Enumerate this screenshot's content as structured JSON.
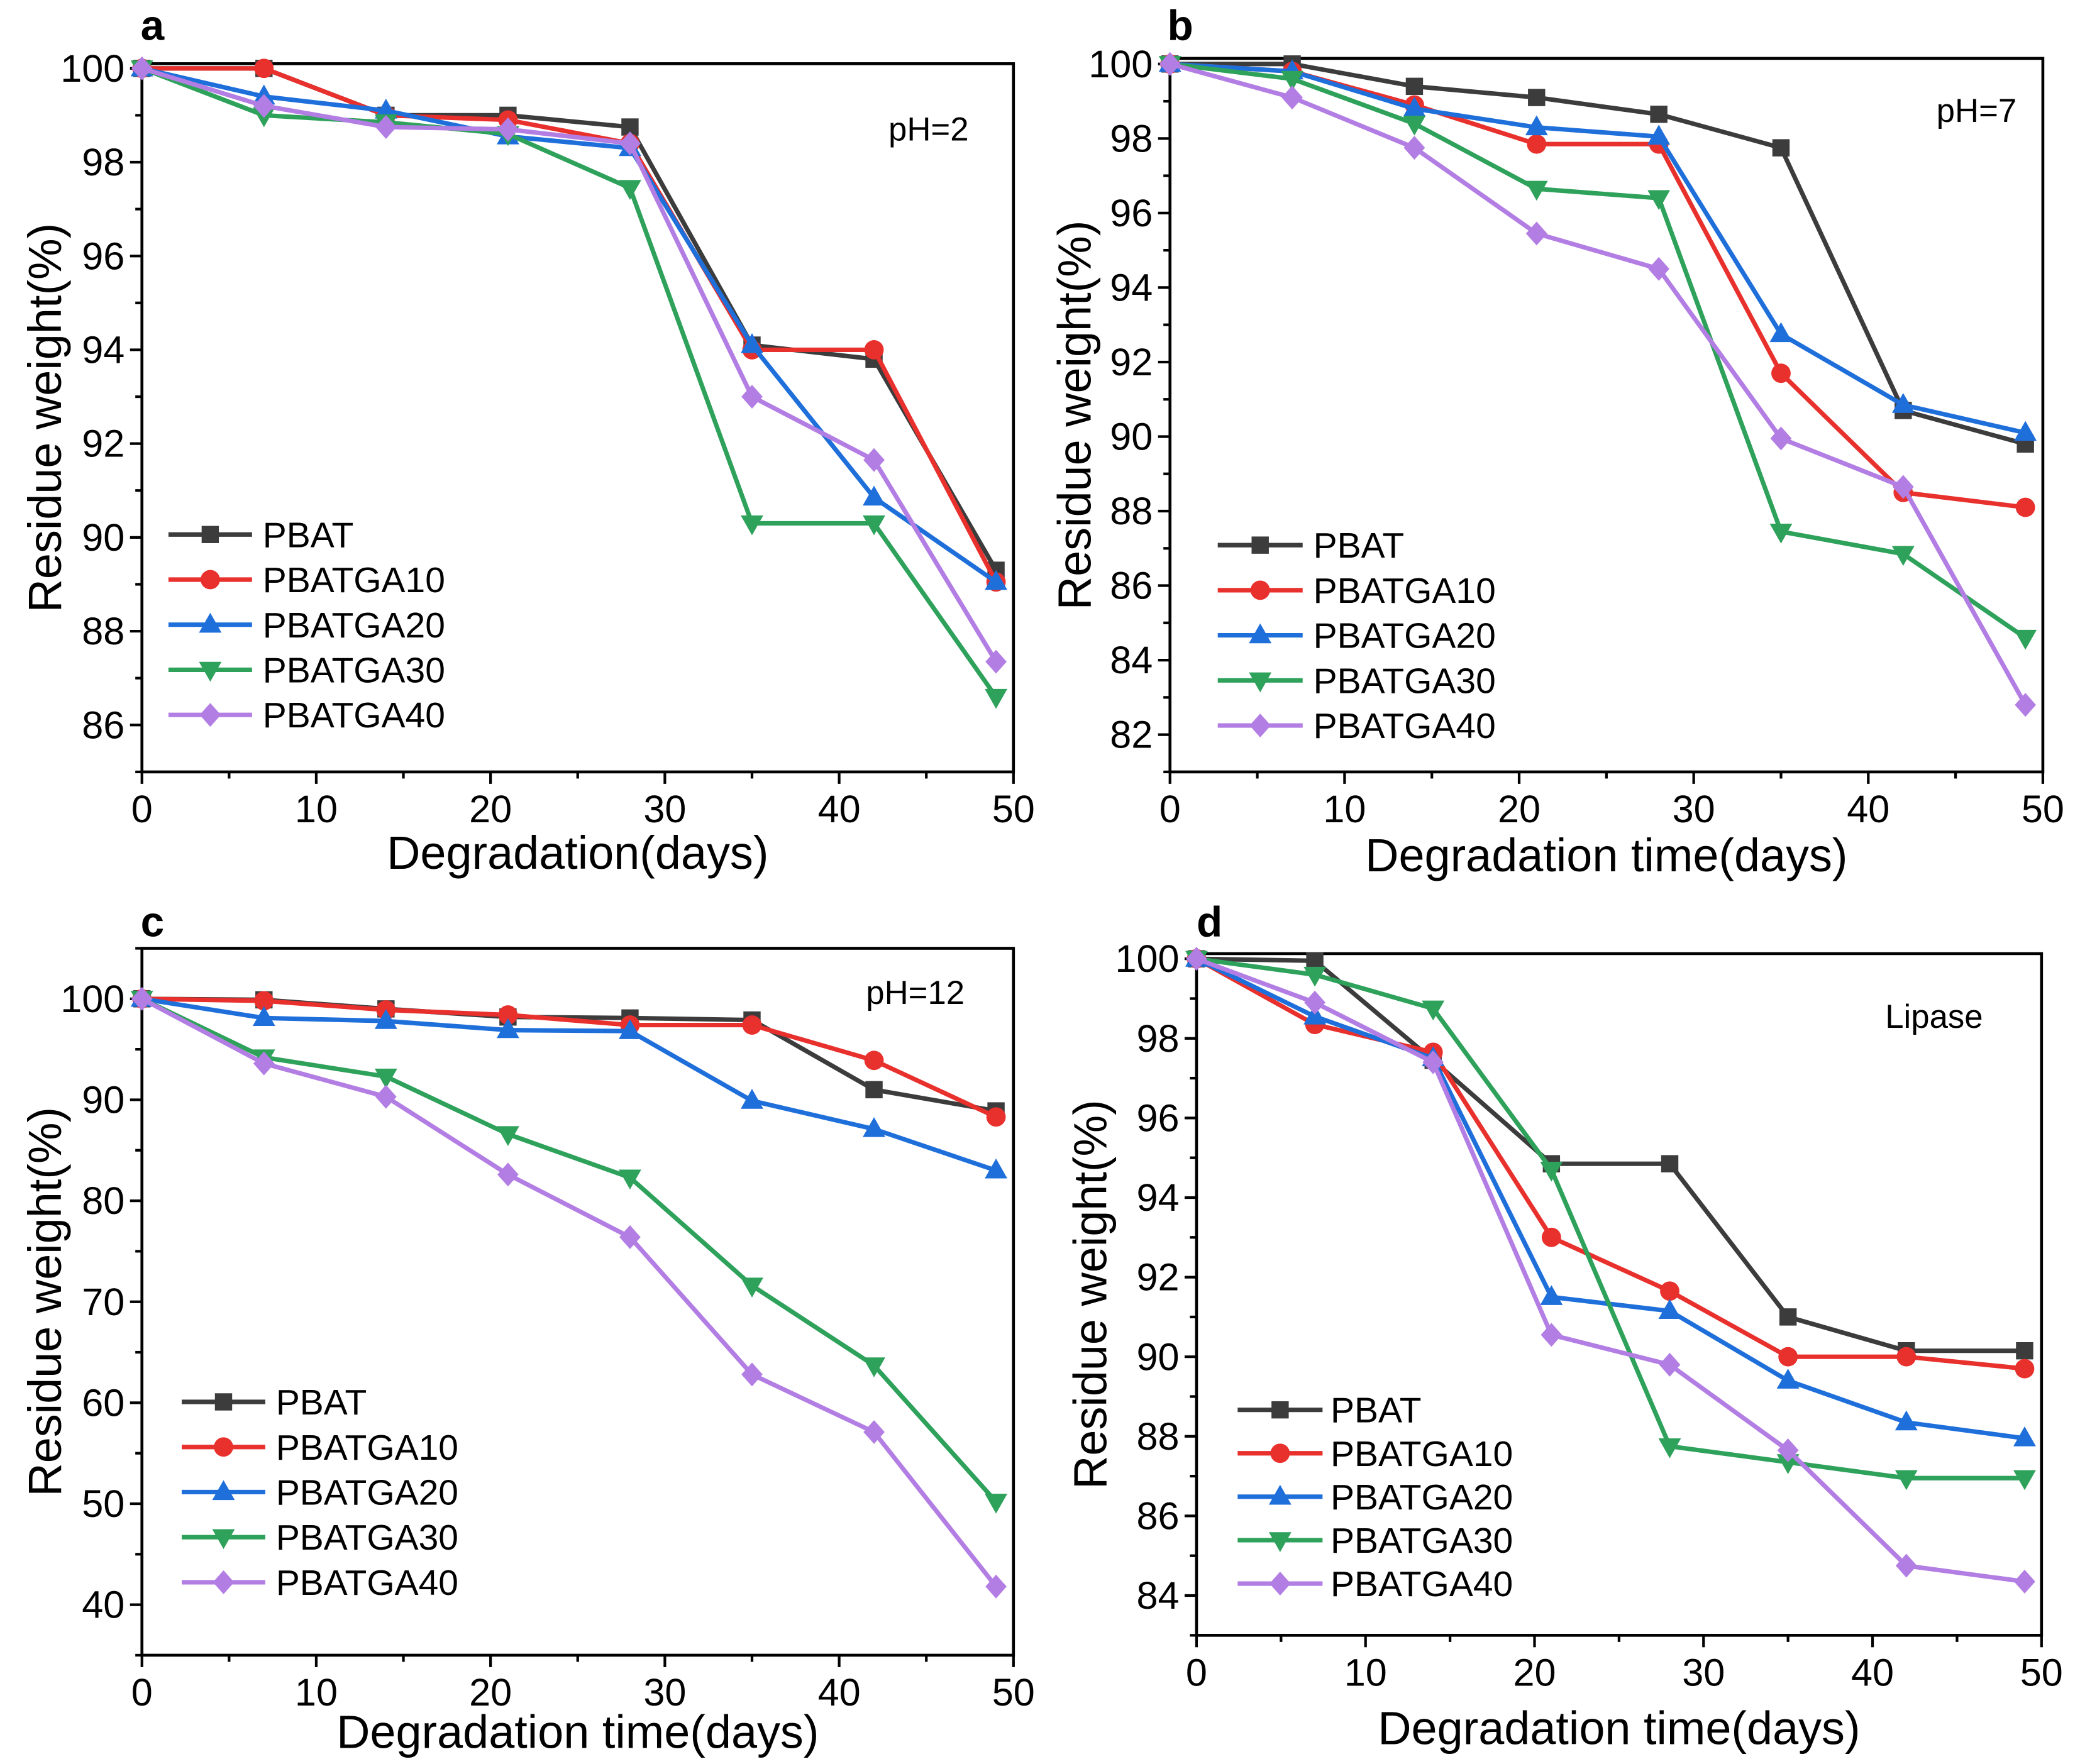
{
  "chart_data": [
    {
      "type": "line",
      "panel_label": "a",
      "annotation": "pH=2",
      "xlabel": "Degradation(days)",
      "ylabel": "Residue weight(%)",
      "xlim": [
        0,
        50
      ],
      "ylim": [
        85,
        100.1
      ],
      "xticks": [
        0,
        10,
        20,
        30,
        40,
        50
      ],
      "yticks": [
        86,
        88,
        90,
        92,
        94,
        96,
        98,
        100
      ],
      "x_minor_step": 5,
      "y_minor_step": 1,
      "grid": false,
      "legend_position": "lower-left",
      "x": [
        0,
        7,
        14,
        21,
        28,
        35,
        42,
        49
      ],
      "series": [
        {
          "name": "PBAT",
          "color": "#3c3c3c",
          "marker": "square",
          "values": [
            100,
            100,
            99.0,
            99.0,
            98.75,
            94.1,
            93.8,
            89.3
          ]
        },
        {
          "name": "PBATGA10",
          "color": "#e8302d",
          "marker": "circle",
          "values": [
            100,
            100,
            99.0,
            98.9,
            98.4,
            94.0,
            94.0,
            89.05
          ]
        },
        {
          "name": "PBATGA20",
          "color": "#1f6fdb",
          "marker": "triangle-up",
          "values": [
            100,
            99.4,
            99.1,
            98.55,
            98.3,
            94.1,
            90.85,
            89.05
          ]
        },
        {
          "name": "PBATGA30",
          "color": "#2ea15b",
          "marker": "triangle-down",
          "values": [
            100,
            99.0,
            98.85,
            98.6,
            97.45,
            90.3,
            90.3,
            86.6
          ]
        },
        {
          "name": "PBATGA40",
          "color": "#b37ee3",
          "marker": "diamond",
          "values": [
            100,
            99.2,
            98.75,
            98.7,
            98.4,
            93.0,
            91.65,
            87.35
          ]
        }
      ]
    },
    {
      "type": "line",
      "panel_label": "b",
      "annotation": "pH=7",
      "xlabel": "Degradation time(days)",
      "ylabel": "Residue weight(%)",
      "xlim": [
        0,
        50
      ],
      "ylim": [
        81,
        100.15
      ],
      "xticks": [
        0,
        10,
        20,
        30,
        40,
        50
      ],
      "yticks": [
        82,
        84,
        86,
        88,
        90,
        92,
        94,
        96,
        98,
        100
      ],
      "x_minor_step": 5,
      "y_minor_step": 1,
      "grid": false,
      "legend_position": "lower-left",
      "x": [
        0,
        7,
        14,
        21,
        28,
        35,
        42,
        49
      ],
      "series": [
        {
          "name": "PBAT",
          "color": "#3c3c3c",
          "marker": "square",
          "values": [
            100,
            100,
            99.4,
            99.1,
            98.65,
            97.75,
            90.7,
            89.8
          ]
        },
        {
          "name": "PBATGA10",
          "color": "#e8302d",
          "marker": "circle",
          "values": [
            100,
            99.8,
            98.9,
            97.85,
            97.85,
            91.7,
            88.5,
            88.1
          ]
        },
        {
          "name": "PBATGA20",
          "color": "#1f6fdb",
          "marker": "triangle-up",
          "values": [
            100,
            99.8,
            98.8,
            98.3,
            98.05,
            92.75,
            90.85,
            90.1
          ]
        },
        {
          "name": "PBATGA30",
          "color": "#2ea15b",
          "marker": "triangle-down",
          "values": [
            100,
            99.6,
            98.4,
            96.65,
            96.4,
            87.45,
            86.85,
            84.6
          ]
        },
        {
          "name": "PBATGA40",
          "color": "#b37ee3",
          "marker": "diamond",
          "values": [
            100,
            99.1,
            97.75,
            95.45,
            94.5,
            89.95,
            88.65,
            82.8
          ]
        }
      ]
    },
    {
      "type": "line",
      "panel_label": "c",
      "annotation": "pH=12",
      "xlabel": "Degradation time(days)",
      "ylabel": "Residue weight(%)",
      "xlim": [
        0,
        50
      ],
      "ylim": [
        35,
        105
      ],
      "xticks": [
        0,
        10,
        20,
        30,
        40,
        50
      ],
      "yticks": [
        40,
        50,
        60,
        70,
        80,
        90,
        100
      ],
      "x_minor_step": 5,
      "y_minor_step": 5,
      "grid": false,
      "legend_position": "lower-left",
      "x": [
        0,
        7,
        14,
        21,
        28,
        35,
        42,
        49
      ],
      "series": [
        {
          "name": "PBAT",
          "color": "#3c3c3c",
          "marker": "square",
          "values": [
            100,
            99.9,
            99.0,
            98.2,
            98.1,
            97.9,
            91.0,
            88.9
          ]
        },
        {
          "name": "PBATGA10",
          "color": "#e8302d",
          "marker": "circle",
          "values": [
            100,
            99.8,
            98.9,
            98.4,
            97.4,
            97.4,
            93.9,
            88.3
          ]
        },
        {
          "name": "PBATGA20",
          "color": "#1f6fdb",
          "marker": "triangle-up",
          "values": [
            100,
            98.1,
            97.8,
            96.9,
            96.8,
            89.9,
            87.1,
            83.0
          ]
        },
        {
          "name": "PBATGA30",
          "color": "#2ea15b",
          "marker": "triangle-down",
          "values": [
            100,
            94.2,
            92.3,
            86.6,
            82.3,
            71.6,
            63.7,
            50.2
          ]
        },
        {
          "name": "PBATGA40",
          "color": "#b37ee3",
          "marker": "diamond",
          "values": [
            100,
            93.6,
            90.3,
            82.6,
            76.4,
            62.8,
            57.1,
            41.8
          ]
        }
      ]
    },
    {
      "type": "line",
      "panel_label": "d",
      "annotation": "Lipase",
      "xlabel": "Degradation time(days)",
      "ylabel": "Residue weight(%)",
      "xlim": [
        0,
        50
      ],
      "ylim": [
        83,
        100.13
      ],
      "xticks": [
        0,
        10,
        20,
        30,
        40,
        50
      ],
      "yticks": [
        84,
        86,
        88,
        90,
        92,
        94,
        96,
        98,
        100
      ],
      "x_minor_step": 5,
      "y_minor_step": 1,
      "grid": false,
      "legend_position": "lower-left",
      "x": [
        0,
        7,
        14,
        21,
        28,
        35,
        42,
        49
      ],
      "series": [
        {
          "name": "PBAT",
          "color": "#3c3c3c",
          "marker": "square",
          "values": [
            100,
            99.95,
            97.45,
            94.85,
            94.85,
            91.0,
            90.15,
            90.15
          ]
        },
        {
          "name": "PBATGA10",
          "color": "#e8302d",
          "marker": "circle",
          "values": [
            100,
            98.35,
            97.65,
            93.0,
            91.65,
            90.0,
            90.0,
            89.7
          ]
        },
        {
          "name": "PBATGA20",
          "color": "#1f6fdb",
          "marker": "triangle-up",
          "values": [
            100,
            98.55,
            97.5,
            91.5,
            91.15,
            89.4,
            88.35,
            87.95
          ]
        },
        {
          "name": "PBATGA30",
          "color": "#2ea15b",
          "marker": "triangle-down",
          "values": [
            100,
            99.6,
            98.75,
            94.7,
            87.75,
            87.35,
            86.95,
            86.95
          ]
        },
        {
          "name": "PBATGA40",
          "color": "#b37ee3",
          "marker": "diamond",
          "values": [
            100,
            98.9,
            97.4,
            90.55,
            89.8,
            87.65,
            84.75,
            84.35
          ]
        }
      ]
    }
  ]
}
